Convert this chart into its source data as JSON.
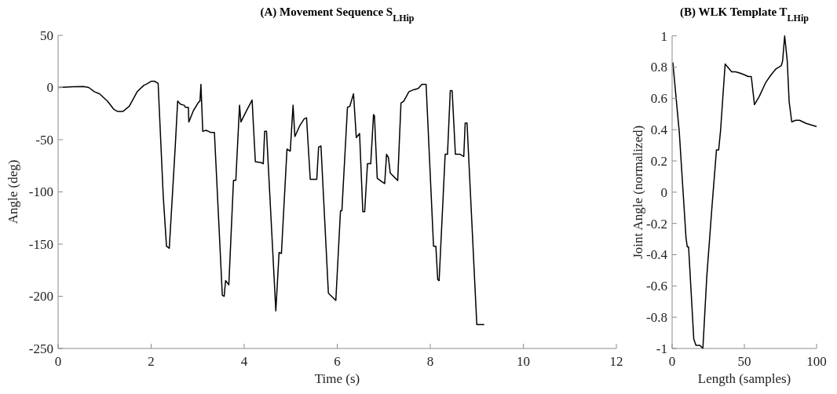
{
  "chart_data": [
    {
      "type": "line",
      "title": "(A) Movement Sequence S$_{LHip}$",
      "xlabel": "Time (s)",
      "ylabel": "Angle (deg)",
      "color": "#000000",
      "xlim": [
        0,
        12
      ],
      "ylim": [
        -250,
        50
      ],
      "xticks": [
        0,
        2,
        4,
        6,
        8,
        10,
        12
      ],
      "yticks": [
        -250,
        -200,
        -150,
        -100,
        -50,
        0,
        50
      ],
      "x": [
        0,
        0.33,
        0.55,
        0.66,
        0.78,
        0.89,
        1.06,
        1.2,
        1.28,
        1.39,
        1.53,
        1.7,
        1.84,
        1.93,
        2.0,
        2.07,
        2.15,
        2.26,
        2.33,
        2.39,
        2.52,
        2.57,
        2.63,
        2.71,
        2.74,
        2.8,
        2.81,
        2.91,
        3.02,
        3.05,
        3.07,
        3.11,
        3.18,
        3.28,
        3.36,
        3.53,
        3.57,
        3.6,
        3.67,
        3.77,
        3.82,
        3.9,
        3.93,
        4.03,
        4.17,
        4.24,
        4.37,
        4.41,
        4.44,
        4.48,
        4.68,
        4.75,
        4.8,
        4.92,
        4.99,
        5.05,
        5.09,
        5.19,
        5.29,
        5.34,
        5.42,
        5.56,
        5.6,
        5.65,
        5.81,
        5.9,
        5.97,
        6.07,
        6.1,
        6.22,
        6.27,
        6.35,
        6.41,
        6.48,
        6.55,
        6.59,
        6.65,
        6.72,
        6.78,
        6.8,
        6.86,
        6.95,
        7.02,
        7.06,
        7.1,
        7.14,
        7.23,
        7.3,
        7.37,
        7.43,
        7.54,
        7.65,
        7.74,
        7.82,
        7.91,
        8.07,
        8.12,
        8.16,
        8.19,
        8.32,
        8.37,
        8.43,
        8.47,
        8.54,
        8.64,
        8.72,
        8.75,
        8.79,
        9.0,
        9.16
      ],
      "values": [
        0,
        0.8,
        1,
        0,
        -4,
        -6,
        -13,
        -21,
        -23,
        -23,
        -18,
        -4,
        2,
        4,
        6,
        6,
        4,
        -104,
        -152,
        -154,
        -55,
        -13,
        -16,
        -17,
        -19,
        -19,
        -33,
        -22,
        -14,
        -13,
        3,
        -42,
        -41,
        -43,
        -43,
        -199,
        -200,
        -185,
        -189,
        -89,
        -89,
        -17,
        -33,
        -24,
        -12,
        -71,
        -72,
        -73,
        -42,
        -42,
        -214,
        -158,
        -159,
        -59,
        -61,
        -17,
        -47,
        -37,
        -30,
        -29,
        -88,
        -88,
        -57,
        -56,
        -197,
        -201,
        -204,
        -118,
        -118,
        -19,
        -18,
        -6,
        -48,
        -44,
        -119,
        -119,
        -73,
        -73,
        -26,
        -27,
        -87,
        -90,
        -92,
        -64,
        -67,
        -82,
        -86,
        -89,
        -15,
        -13,
        -4,
        -2,
        -1,
        3,
        3,
        -152,
        -152,
        -184,
        -185,
        -64,
        -64,
        -3,
        -3,
        -64,
        -64,
        -66,
        -34,
        -34,
        -227,
        -227
      ]
    },
    {
      "type": "line",
      "title": "(B) WLK Template T$_{LHip}$",
      "xlabel": "Length (samples)",
      "ylabel": "Joint Angle (normalized)",
      "color": "#000000",
      "xlim": [
        0,
        100
      ],
      "ylim": [
        -1,
        1
      ],
      "xticks": [
        0,
        50,
        100
      ],
      "yticks": [
        -1,
        -0.8,
        -0.6,
        -0.4,
        -0.2,
        0,
        0.2,
        0.4,
        0.6,
        0.8,
        1
      ],
      "x": [
        0.5,
        5,
        9.6,
        10.5,
        11.4,
        15,
        16.5,
        19.2,
        21.3,
        24,
        27.7,
        30.7,
        32.2,
        33.5,
        36.7,
        38.5,
        41.2,
        43.9,
        47.6,
        50.3,
        52.6,
        54.8,
        57,
        60.2,
        64.7,
        68.4,
        72,
        75.6,
        76.5,
        77.9,
        79.7,
        81,
        82.8,
        85.5,
        88.2,
        92.8,
        96.4,
        100
      ],
      "values": [
        0.83,
        0.38,
        -0.29,
        -0.35,
        -0.35,
        -0.94,
        -0.98,
        -0.98,
        -1.0,
        -0.54,
        -0.08,
        0.27,
        0.27,
        0.39,
        0.82,
        0.8,
        0.77,
        0.77,
        0.76,
        0.75,
        0.74,
        0.74,
        0.56,
        0.61,
        0.7,
        0.75,
        0.79,
        0.81,
        0.84,
        1.0,
        0.84,
        0.58,
        0.45,
        0.46,
        0.46,
        0.44,
        0.43,
        0.42
      ]
    }
  ]
}
